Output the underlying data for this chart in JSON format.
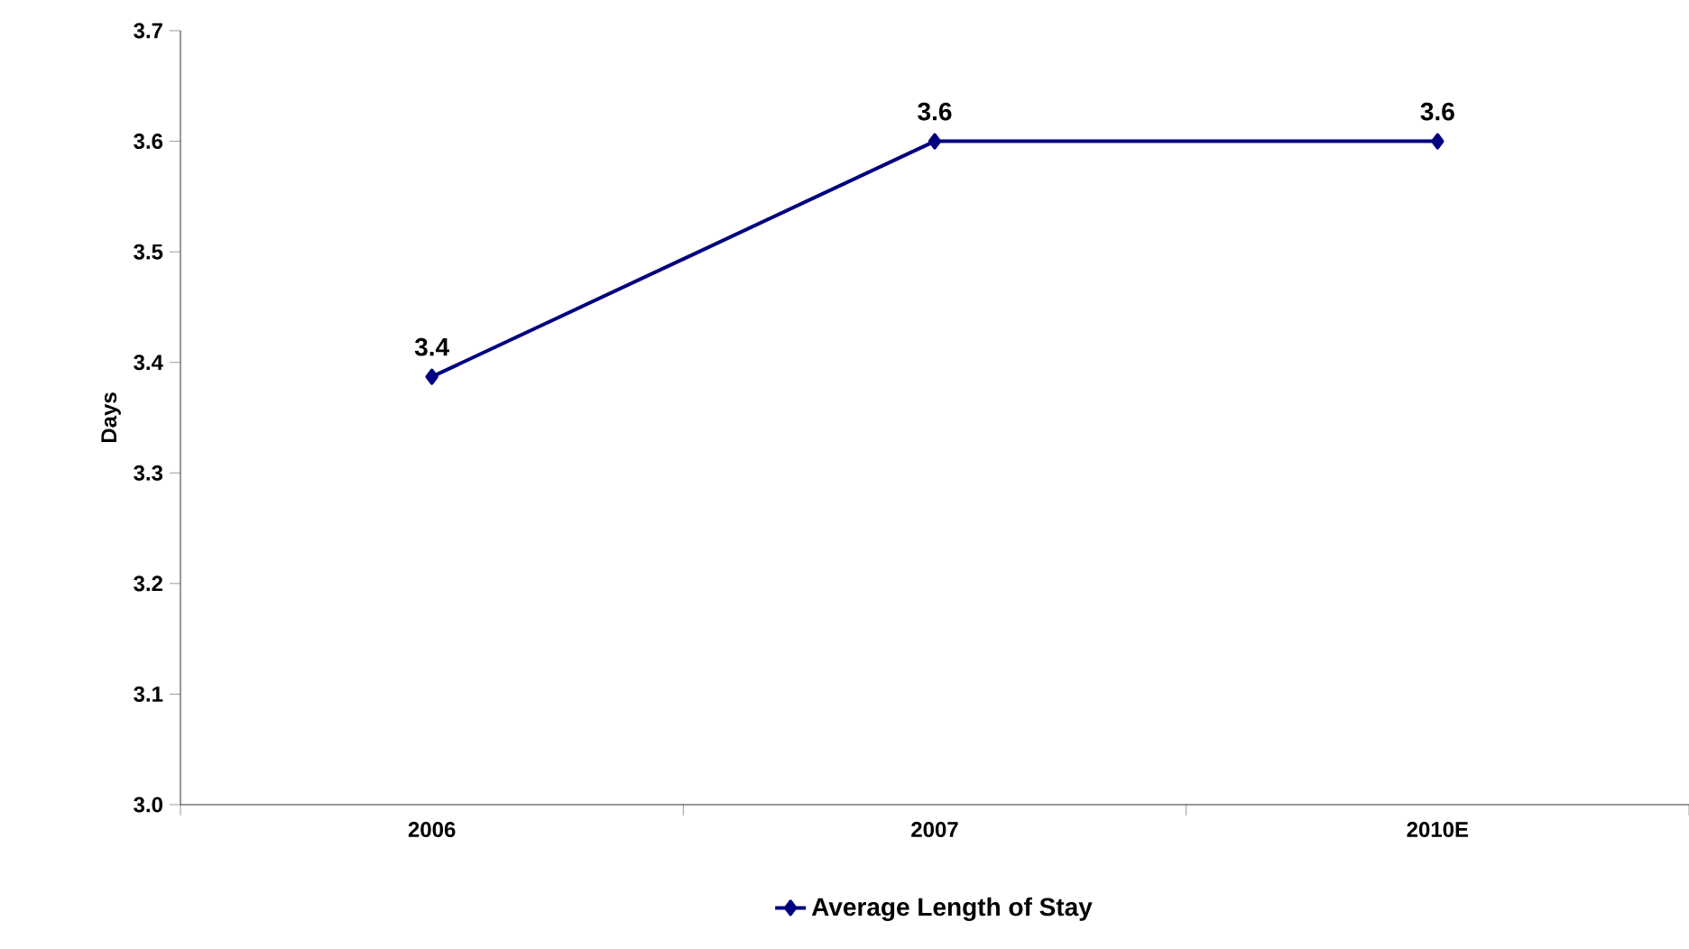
{
  "chart_data": {
    "type": "line",
    "ylabel": "Days",
    "categories": [
      "2006",
      "2007",
      "2010E"
    ],
    "series": [
      {
        "name": "Average Length of Stay",
        "color": "#000080",
        "values": [
          3.387,
          3.6,
          3.6
        ],
        "value_labels": [
          "3.4",
          "3.6",
          "3.6"
        ]
      }
    ],
    "ylim": [
      3.0,
      3.7
    ],
    "yticks": [
      {
        "value": 3.0,
        "label": "3.0"
      },
      {
        "value": 3.1,
        "label": "3.1"
      },
      {
        "value": 3.2,
        "label": "3.2"
      },
      {
        "value": 3.3,
        "label": "3.3"
      },
      {
        "value": 3.4,
        "label": "3.4"
      },
      {
        "value": 3.5,
        "label": "3.5"
      },
      {
        "value": 3.6,
        "label": "3.6"
      },
      {
        "value": 3.7,
        "label": "3.7"
      }
    ],
    "marker": "diamond",
    "line_style": "solid",
    "grid": false,
    "legend": "bottom"
  }
}
